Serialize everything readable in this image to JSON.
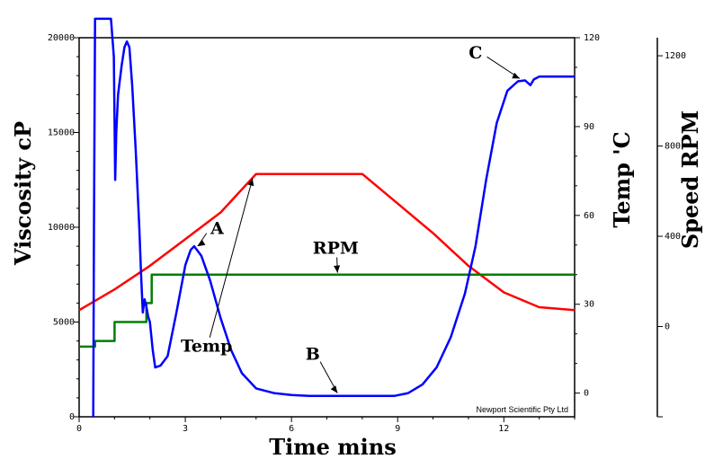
{
  "chart_data": {
    "type": "line",
    "xlabel": "Time mins",
    "ylabel_left": "Viscosity cP",
    "ylabel_right": "Temp 'C",
    "ylabel_far_right": "Speed RPM",
    "x_ticks": [
      "0",
      "3",
      "6",
      "9",
      "12"
    ],
    "viscosity_ticks": [
      "0",
      "5000",
      "10000",
      "15000",
      "20000"
    ],
    "temp_ticks": [
      "0",
      "30",
      "60",
      "90",
      "120"
    ],
    "speed_ticks": [
      "0",
      "400",
      "800",
      "1200"
    ],
    "xlim": [
      0,
      14
    ],
    "ylim_viscosity": [
      0,
      20000
    ],
    "ylim_temp": [
      -8,
      120
    ],
    "ylim_speed": [
      -400,
      1280
    ],
    "credit": "Newport Scientific Pty Ltd",
    "series": [
      {
        "name": "Temp",
        "axis": "temp",
        "color": "#ff0000",
        "points": [
          [
            0,
            28
          ],
          [
            1,
            35
          ],
          [
            2,
            43
          ],
          [
            3,
            52
          ],
          [
            4,
            61
          ],
          [
            5,
            74
          ],
          [
            6,
            74
          ],
          [
            7,
            74
          ],
          [
            8,
            74
          ],
          [
            9,
            64
          ],
          [
            10,
            54
          ],
          [
            11,
            43
          ],
          [
            12,
            34
          ],
          [
            13,
            29
          ],
          [
            14,
            28
          ]
        ]
      },
      {
        "name": "RPM",
        "axis": "viscosity",
        "color": "#008000",
        "points": [
          [
            0,
            3700
          ],
          [
            0.45,
            3700
          ],
          [
            0.45,
            4000
          ],
          [
            1,
            4000
          ],
          [
            1,
            5000
          ],
          [
            1.9,
            5000
          ],
          [
            1.9,
            6000
          ],
          [
            2.05,
            6000
          ],
          [
            2.05,
            7500
          ],
          [
            14,
            7500
          ]
        ]
      },
      {
        "name": "Viscosity",
        "axis": "viscosity",
        "color": "#0000ff",
        "points": [
          [
            0.4,
            0
          ],
          [
            0.42,
            10000
          ],
          [
            0.45,
            21000
          ],
          [
            0.5,
            21000
          ],
          [
            0.8,
            21000
          ],
          [
            0.9,
            21000
          ],
          [
            0.98,
            19000
          ],
          [
            1.02,
            12500
          ],
          [
            1.05,
            15000
          ],
          [
            1.1,
            17000
          ],
          [
            1.2,
            18500
          ],
          [
            1.28,
            19500
          ],
          [
            1.35,
            19800
          ],
          [
            1.42,
            19500
          ],
          [
            1.5,
            17500
          ],
          [
            1.6,
            14000
          ],
          [
            1.7,
            10000
          ],
          [
            1.75,
            7500
          ],
          [
            1.8,
            5500
          ],
          [
            1.85,
            6200
          ],
          [
            1.9,
            5800
          ],
          [
            1.95,
            5300
          ],
          [
            2.0,
            5000
          ],
          [
            2.08,
            3500
          ],
          [
            2.15,
            2600
          ],
          [
            2.3,
            2700
          ],
          [
            2.5,
            3200
          ],
          [
            2.75,
            5500
          ],
          [
            3.0,
            8000
          ],
          [
            3.15,
            8800
          ],
          [
            3.25,
            9000
          ],
          [
            3.45,
            8500
          ],
          [
            3.7,
            7200
          ],
          [
            4.0,
            5200
          ],
          [
            4.3,
            3500
          ],
          [
            4.6,
            2300
          ],
          [
            5.0,
            1500
          ],
          [
            5.5,
            1250
          ],
          [
            6.0,
            1150
          ],
          [
            6.5,
            1100
          ],
          [
            7.0,
            1100
          ],
          [
            7.5,
            1100
          ],
          [
            8.0,
            1100
          ],
          [
            8.5,
            1100
          ],
          [
            8.9,
            1100
          ],
          [
            9.3,
            1250
          ],
          [
            9.7,
            1700
          ],
          [
            10.1,
            2600
          ],
          [
            10.5,
            4200
          ],
          [
            10.9,
            6500
          ],
          [
            11.2,
            9000
          ],
          [
            11.5,
            12500
          ],
          [
            11.8,
            15500
          ],
          [
            12.1,
            17200
          ],
          [
            12.4,
            17700
          ],
          [
            12.6,
            17750
          ],
          [
            12.75,
            17500
          ],
          [
            12.85,
            17800
          ],
          [
            13.0,
            17950
          ],
          [
            14,
            17950
          ]
        ]
      }
    ],
    "annotations": [
      {
        "label": "Temp",
        "tx": 3.6,
        "tv": 14,
        "tx_axis": "temp",
        "ax": 4.9,
        "av": 72.5
      },
      {
        "label": "A",
        "tx": 3.9,
        "tv": 9650,
        "tx_axis": "viscosity",
        "ax": 3.35,
        "av": 9000
      },
      {
        "label": "RPM",
        "tx": 7.25,
        "tv": 8600,
        "tx_axis": "viscosity",
        "ax": 7.3,
        "av": 7600
      },
      {
        "label": "B",
        "tx": 6.6,
        "tv": 3000,
        "tx_axis": "viscosity",
        "ax": 7.3,
        "av": 1250
      },
      {
        "label": "C",
        "tx": 11.2,
        "tv": 18900,
        "tx_axis": "viscosity",
        "ax": 12.45,
        "av": 17850
      }
    ]
  }
}
